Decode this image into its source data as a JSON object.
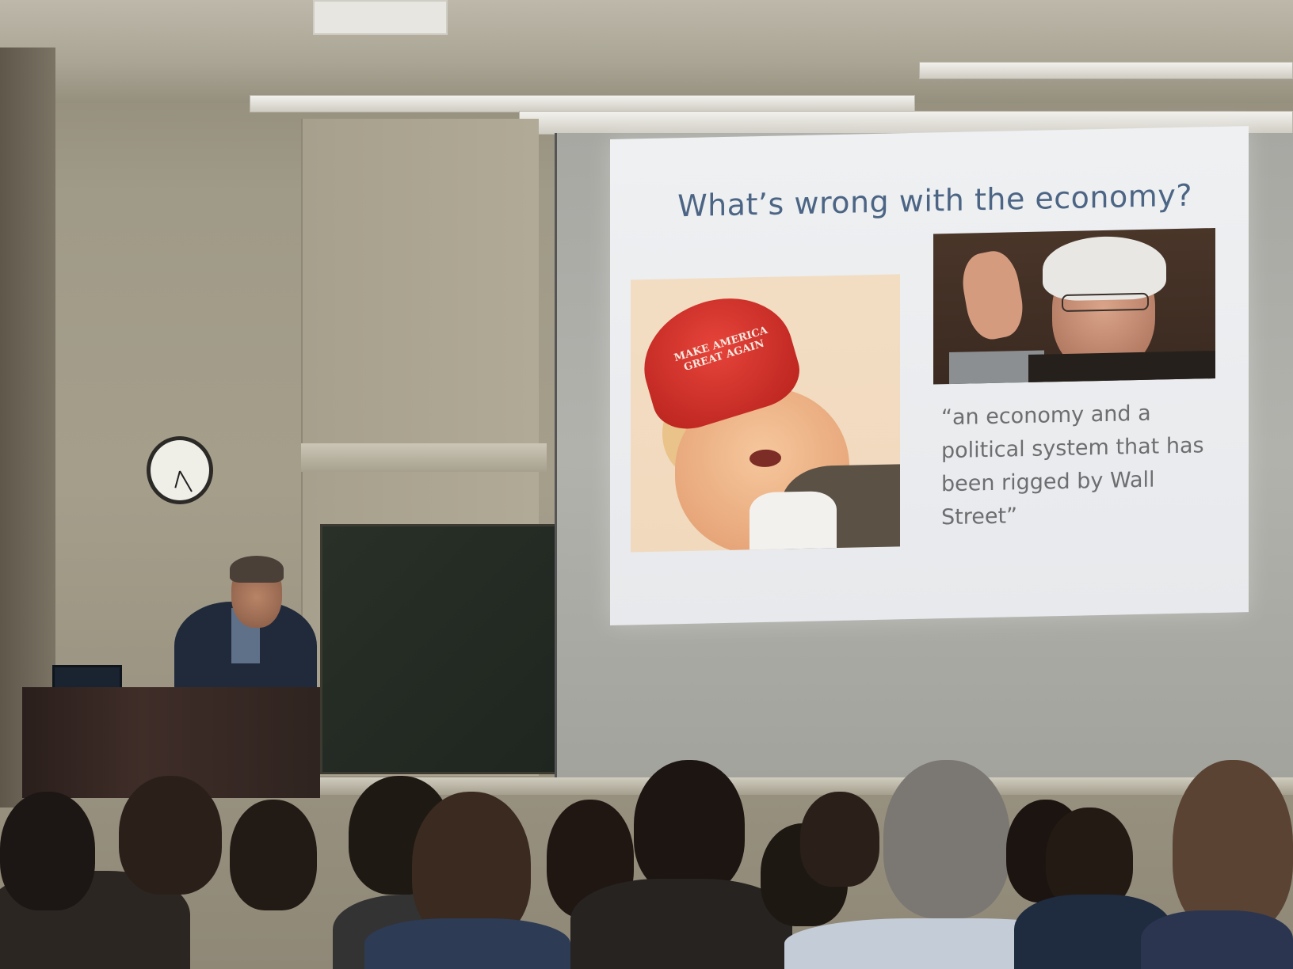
{
  "slide": {
    "title": "What’s wrong with the economy?",
    "hat_text_line1": "MAKE AMERICA",
    "hat_text_line2": "GREAT AGAIN",
    "quote_lines": [
      "“an economy and a",
      "political system that has",
      "been rigged by Wall",
      "Street”"
    ]
  },
  "colors": {
    "slide_title": "#4c6585",
    "quote_text": "#6c6e70",
    "hat_red": "#d2332b"
  }
}
